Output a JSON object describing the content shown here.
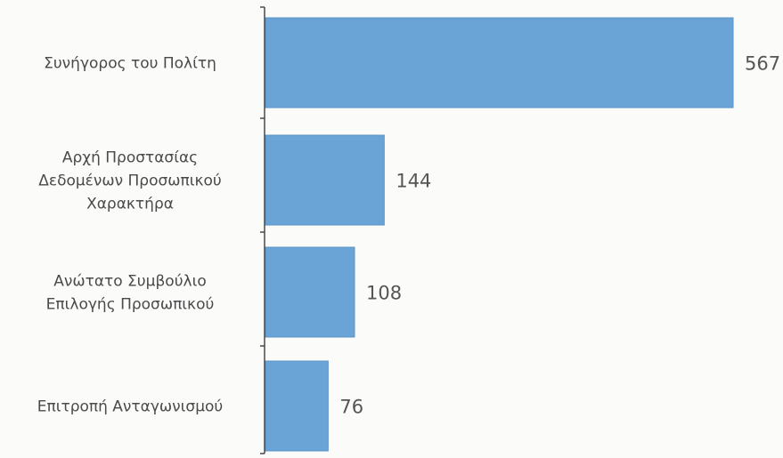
{
  "chart_data": {
    "type": "bar",
    "orientation": "horizontal",
    "categories": [
      [
        "Συνήγορος του Πολίτη"
      ],
      [
        "Αρχή Προστασίας",
        "Δεδομένων Προσωπικού",
        "Χαρακτήρα"
      ],
      [
        "Ανώτατο Συμβούλιο",
        "Επιλογής Προσωπικού"
      ],
      [
        "Επιτροπή Ανταγωνισμού"
      ]
    ],
    "values": [
      567,
      144,
      108,
      76
    ],
    "value_labels": [
      "567",
      "144",
      "108",
      "76"
    ],
    "title": "",
    "xlabel": "",
    "ylabel": "",
    "xlim": [
      0,
      567
    ],
    "grid": false,
    "legend": "none",
    "colors": {
      "bar": "#6aa4d6",
      "bar_edge": "#5b94c7",
      "text": "#4a4a4a",
      "value_text": "#555555",
      "axis": "#4a4a4a",
      "background": "#fbfbfa"
    }
  }
}
